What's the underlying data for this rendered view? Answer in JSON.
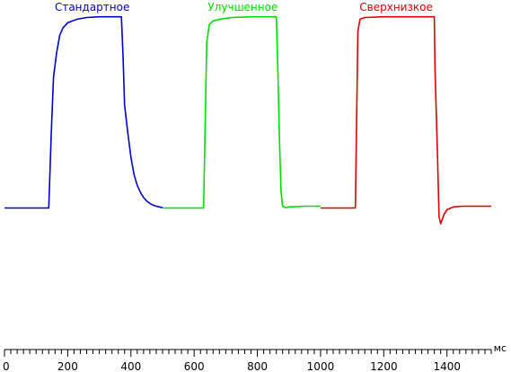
{
  "chart_data": {
    "type": "line",
    "title": "",
    "xlabel": "мс",
    "ylabel": "",
    "xlim": [
      0,
      1540
    ],
    "ylim": [
      0,
      100
    ],
    "grid": false,
    "x_ticks": [
      0,
      200,
      400,
      600,
      800,
      1000,
      1200,
      1400
    ],
    "x_minor_step": 20,
    "series": [
      {
        "name": "Стандартное",
        "color": "#0000cc",
        "x": [
          0,
          140,
          148,
          155,
          165,
          175,
          185,
          200,
          230,
          260,
          300,
          340,
          370,
          375,
          380,
          390,
          400,
          410,
          420,
          430,
          440,
          450,
          460,
          470,
          480,
          490,
          500
        ],
        "y": [
          40.5,
          40.5,
          62,
          78,
          85,
          90,
          92,
          93.5,
          94.5,
          95,
          95.2,
          95.2,
          95.2,
          84,
          70,
          62,
          55,
          50,
          47,
          45,
          43.5,
          42.5,
          41.8,
          41.3,
          41,
          40.8,
          40.6
        ]
      },
      {
        "name": "Улучшенное",
        "color": "#00dd00",
        "x": [
          500,
          630,
          640,
          648,
          660,
          680,
          720,
          780,
          860,
          865,
          870,
          875,
          880,
          890,
          900,
          950,
          1000
        ],
        "y": [
          40.5,
          40.5,
          88,
          93,
          94,
          94.5,
          95,
          95.2,
          95.2,
          80,
          60,
          45,
          41,
          40.6,
          40.8,
          41,
          41
        ]
      },
      {
        "name": "Сверхнизкое",
        "color": "#dd0000",
        "x": [
          1000,
          1110,
          1118,
          1125,
          1140,
          1200,
          1300,
          1360,
          1362,
          1370,
          1375,
          1380,
          1390,
          1400,
          1420,
          1450,
          1500,
          1540
        ],
        "y": [
          40.5,
          40.5,
          91,
          94.5,
          95,
          95.2,
          95.2,
          95.2,
          80,
          55,
          38,
          36,
          38.5,
          40,
          40.8,
          41,
          41,
          41
        ]
      }
    ]
  }
}
